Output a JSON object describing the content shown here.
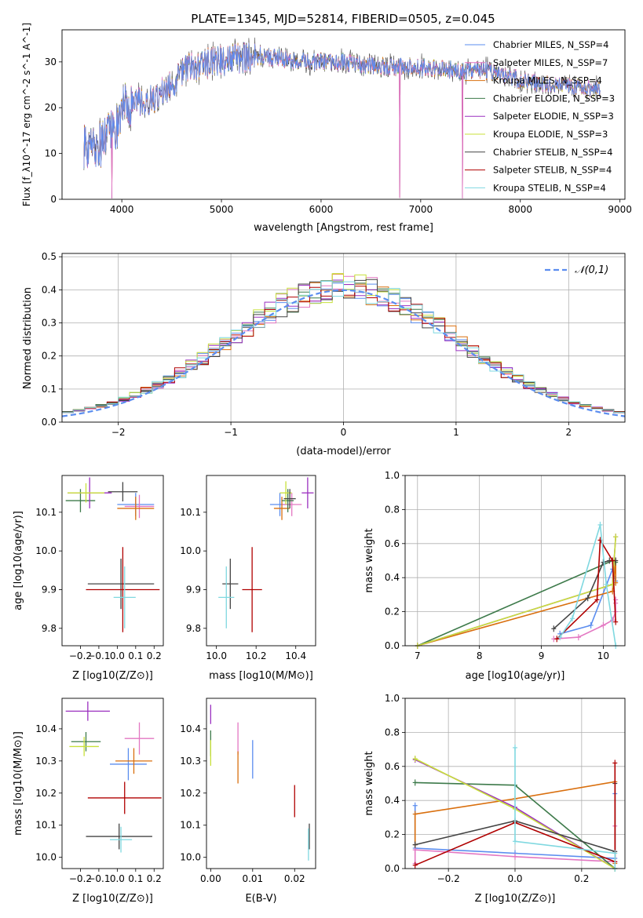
{
  "title": "PLATE=1345, MJD=52814, FIBERID=0505, z=0.045",
  "colors": {
    "chabrier_miles": "#5b8def",
    "salpeter_miles": "#e377c2",
    "kroupa_miles": "#d96f0e",
    "chabrier_elodie": "#3d7a4a",
    "salpeter_elodie": "#9b30c0",
    "kroupa_elodie": "#c8e03a",
    "chabrier_stelib": "#444444",
    "salpeter_stelib": "#b00000",
    "kroupa_stelib": "#7fd8e0",
    "gauss": "#5b8def"
  },
  "chart_data": [
    {
      "id": "spectrum",
      "type": "line",
      "xlabel": "wavelength [Angstrom, rest frame]",
      "ylabel": "Flux [f_λ10^-17 erg cm^-2 s^-1 A^-1]",
      "xlim": [
        3400,
        9050
      ],
      "ylim": [
        0,
        37
      ],
      "xticks": [
        "4000",
        "5000",
        "6000",
        "7000",
        "8000",
        "9000"
      ],
      "yticks": [
        "0",
        "10",
        "20",
        "30"
      ],
      "continuum_knots": [
        [
          3600,
          12
        ],
        [
          3700,
          11
        ],
        [
          3800,
          12
        ],
        [
          3950,
          16
        ],
        [
          4000,
          20
        ],
        [
          4100,
          21
        ],
        [
          4300,
          22
        ],
        [
          4500,
          25
        ],
        [
          4600,
          28
        ],
        [
          4900,
          30
        ],
        [
          5200,
          31
        ],
        [
          5500,
          31
        ],
        [
          5800,
          30
        ],
        [
          6200,
          30
        ],
        [
          6600,
          29
        ],
        [
          7000,
          29
        ],
        [
          7200,
          28.5
        ],
        [
          7500,
          28
        ],
        [
          7700,
          28
        ],
        [
          8000,
          26
        ],
        [
          8300,
          25
        ],
        [
          8600,
          24.5
        ],
        [
          8800,
          24
        ]
      ],
      "glitches": [
        [
          3900,
          0.2
        ],
        [
          6790,
          0.3
        ],
        [
          7420,
          0.2
        ]
      ],
      "legend": {
        "placement": "top-right",
        "entries": [
          {
            "label": "Chabrier MILES, N_SSP=4",
            "color_key": "chabrier_miles"
          },
          {
            "label": "Salpeter MILES, N_SSP=7",
            "color_key": "salpeter_miles"
          },
          {
            "label": "Kroupa MILES, N_SSP=4",
            "color_key": "kroupa_miles"
          },
          {
            "label": "Chabrier ELODIE, N_SSP=3",
            "color_key": "chabrier_elodie"
          },
          {
            "label": "Salpeter ELODIE, N_SSP=3",
            "color_key": "salpeter_elodie"
          },
          {
            "label": "Kroupa ELODIE, N_SSP=3",
            "color_key": "kroupa_elodie"
          },
          {
            "label": "Chabrier STELIB, N_SSP=4",
            "color_key": "chabrier_stelib"
          },
          {
            "label": "Salpeter STELIB, N_SSP=4",
            "color_key": "salpeter_stelib"
          },
          {
            "label": "Kroupa STELIB, N_SSP=4",
            "color_key": "kroupa_stelib"
          }
        ]
      }
    },
    {
      "id": "residuals",
      "type": "histogram",
      "xlabel": "(data-model)/error",
      "ylabel": "Normed distribution",
      "xlim": [
        -2.5,
        2.5
      ],
      "ylim": [
        0,
        0.51
      ],
      "grid": true,
      "xticks": [
        -2,
        -1,
        0,
        1,
        2
      ],
      "yticks": [
        0.0,
        0.1,
        0.2,
        0.3,
        0.4,
        0.5
      ],
      "bin_width": 0.1,
      "legend": {
        "placement": "top-right",
        "label": "𝒩(0,1)"
      }
    },
    {
      "id": "age_vs_Z",
      "type": "scatter",
      "xlabel": "Z [log10(Z/Z⊙)]",
      "ylabel": "age  [log10(age/yr)]",
      "xlim": [
        -0.3,
        0.25
      ],
      "ylim": [
        9.755,
        10.195
      ],
      "xticks": [
        -0.2,
        -0.1,
        0.0,
        0.1,
        0.2
      ],
      "yticks": [
        9.8,
        9.9,
        10.0,
        10.1
      ],
      "points": [
        {
          "c": "chabrier_miles",
          "x": 0.1,
          "xerr": 0.1,
          "y": 10.12,
          "yerr": 0.03
        },
        {
          "c": "salpeter_miles",
          "x": 0.12,
          "xerr": 0.08,
          "y": 10.115,
          "yerr": 0.03
        },
        {
          "c": "kroupa_miles",
          "x": 0.1,
          "xerr": 0.1,
          "y": 10.11,
          "yerr": 0.03
        },
        {
          "c": "chabrier_elodie",
          "x": -0.2,
          "xerr": 0.08,
          "y": 10.13,
          "yerr": 0.03
        },
        {
          "c": "salpeter_elodie",
          "x": -0.15,
          "xerr": 0.12,
          "y": 10.15,
          "yerr": 0.04
        },
        {
          "c": "kroupa_elodie",
          "x": -0.17,
          "xerr": 0.1,
          "y": 10.15,
          "yerr": 0.025
        },
        {
          "c": "chabrier_stelib",
          "x": 0.03,
          "xerr": 0.08,
          "y": 10.153,
          "yerr": 0.025
        },
        {
          "c": "chabrier_stelib",
          "x": 0.02,
          "xerr": 0.18,
          "y": 9.915,
          "yerr": 0.065
        },
        {
          "c": "salpeter_stelib",
          "x": 0.03,
          "xerr": 0.2,
          "y": 9.9,
          "yerr": 0.11
        },
        {
          "c": "kroupa_stelib",
          "x": 0.04,
          "xerr": 0.06,
          "y": 9.88,
          "yerr": 0.08
        }
      ]
    },
    {
      "id": "age_vs_mass",
      "type": "scatter",
      "xlabel": "mass [log10(M/M⊙)]",
      "ylabel": "",
      "xlim": [
        9.95,
        10.5
      ],
      "ylim": [
        9.755,
        10.195
      ],
      "xticks": [
        10.0,
        10.2,
        10.4
      ],
      "yticks": [
        9.8,
        9.9,
        10.0,
        10.1
      ],
      "points": [
        {
          "c": "chabrier_miles",
          "x": 10.32,
          "xerr": 0.05,
          "y": 10.12,
          "yerr": 0.03
        },
        {
          "c": "salpeter_miles",
          "x": 10.38,
          "xerr": 0.05,
          "y": 10.12,
          "yerr": 0.03
        },
        {
          "c": "kroupa_miles",
          "x": 10.33,
          "xerr": 0.04,
          "y": 10.11,
          "yerr": 0.03
        },
        {
          "c": "chabrier_elodie",
          "x": 10.36,
          "xerr": 0.03,
          "y": 10.13,
          "yerr": 0.03
        },
        {
          "c": "salpeter_elodie",
          "x": 10.46,
          "xerr": 0.03,
          "y": 10.15,
          "yerr": 0.04
        },
        {
          "c": "kroupa_elodie",
          "x": 10.35,
          "xerr": 0.03,
          "y": 10.15,
          "yerr": 0.03
        },
        {
          "c": "chabrier_stelib",
          "x": 10.37,
          "xerr": 0.03,
          "y": 10.135,
          "yerr": 0.025
        },
        {
          "c": "chabrier_stelib",
          "x": 10.07,
          "xerr": 0.04,
          "y": 9.915,
          "yerr": 0.065
        },
        {
          "c": "salpeter_stelib",
          "x": 10.18,
          "xerr": 0.05,
          "y": 9.9,
          "yerr": 0.11
        },
        {
          "c": "kroupa_stelib",
          "x": 10.05,
          "xerr": 0.04,
          "y": 9.88,
          "yerr": 0.08
        }
      ]
    },
    {
      "id": "weight_vs_age",
      "type": "line",
      "xlabel": "age  [log10(age/yr)]",
      "ylabel": "mass weight",
      "xlim": [
        6.8,
        10.35
      ],
      "ylim": [
        0,
        1.0
      ],
      "grid": true,
      "xticks": [
        7,
        8,
        9,
        10
      ],
      "yticks": [
        0.0,
        0.2,
        0.4,
        0.6,
        0.8,
        1.0
      ],
      "series": [
        {
          "c": "chabrier_miles",
          "x": [
            9.3,
            9.8,
            10.15,
            10.2
          ],
          "y": [
            0.07,
            0.12,
            0.45,
            0.38
          ]
        },
        {
          "c": "salpeter_miles",
          "x": [
            9.2,
            9.6,
            10.0,
            10.15,
            10.2,
            10.2,
            10.2
          ],
          "y": [
            0.04,
            0.05,
            0.12,
            0.15,
            0.2,
            0.25,
            0.27
          ]
        },
        {
          "c": "kroupa_miles",
          "x": [
            7.0,
            10.15,
            10.2,
            10.2
          ],
          "y": [
            0.0,
            0.32,
            0.5,
            0.37
          ]
        },
        {
          "c": "chabrier_elodie",
          "x": [
            7.0,
            10.15,
            10.2
          ],
          "y": [
            0.0,
            0.5,
            0.49
          ]
        },
        {
          "c": "salpeter_elodie",
          "x": [
            7.0,
            10.15,
            10.2
          ],
          "y": [
            0.0,
            0.36,
            0.64
          ]
        },
        {
          "c": "kroupa_elodie",
          "x": [
            7.0,
            10.15,
            10.2
          ],
          "y": [
            0.0,
            0.36,
            0.64
          ]
        },
        {
          "c": "chabrier_stelib",
          "x": [
            9.2,
            9.75,
            10.0,
            10.1,
            10.2
          ],
          "y": [
            0.1,
            0.28,
            0.49,
            0.5,
            0.5
          ]
        },
        {
          "c": "salpeter_stelib",
          "x": [
            9.25,
            9.9,
            9.95,
            10.15,
            10.2
          ],
          "y": [
            0.04,
            0.27,
            0.62,
            0.5,
            0.14
          ]
        },
        {
          "c": "kroupa_stelib",
          "x": [
            9.3,
            9.5,
            9.95,
            10.05,
            10.2
          ],
          "y": [
            0.05,
            0.16,
            0.71,
            0.36,
            0.0
          ]
        }
      ]
    },
    {
      "id": "mass_vs_Z",
      "type": "scatter",
      "xlabel": "Z [log10(Z/Z⊙)]",
      "ylabel": "mass [log10(M/M⊙)]",
      "xlim": [
        -0.3,
        0.25
      ],
      "ylim": [
        9.965,
        10.495
      ],
      "xticks": [
        -0.2,
        -0.1,
        0.0,
        0.1,
        0.2
      ],
      "yticks": [
        10.0,
        10.1,
        10.2,
        10.3,
        10.4
      ],
      "points": [
        {
          "c": "chabrier_miles",
          "x": 0.06,
          "xerr": 0.1,
          "y": 10.29,
          "yerr": 0.05
        },
        {
          "c": "salpeter_miles",
          "x": 0.12,
          "xerr": 0.08,
          "y": 10.37,
          "yerr": 0.05
        },
        {
          "c": "kroupa_miles",
          "x": 0.09,
          "xerr": 0.1,
          "y": 10.3,
          "yerr": 0.04
        },
        {
          "c": "chabrier_elodie",
          "x": -0.17,
          "xerr": 0.08,
          "y": 10.36,
          "yerr": 0.03
        },
        {
          "c": "salpeter_elodie",
          "x": -0.16,
          "xerr": 0.12,
          "y": 10.455,
          "yerr": 0.03
        },
        {
          "c": "kroupa_elodie",
          "x": -0.18,
          "xerr": 0.08,
          "y": 10.345,
          "yerr": 0.03
        },
        {
          "c": "chabrier_stelib",
          "x": 0.01,
          "xerr": 0.18,
          "y": 10.065,
          "yerr": 0.04
        },
        {
          "c": "salpeter_stelib",
          "x": 0.04,
          "xerr": 0.2,
          "y": 10.185,
          "yerr": 0.05
        },
        {
          "c": "kroupa_stelib",
          "x": 0.02,
          "xerr": 0.06,
          "y": 10.055,
          "yerr": 0.04
        }
      ]
    },
    {
      "id": "mass_vs_ebv",
      "type": "scatter",
      "xlabel": "E(B-V)",
      "ylabel": "",
      "xlim": [
        -0.001,
        0.025
      ],
      "ylim": [
        9.965,
        10.495
      ],
      "xticks": [
        0.0,
        0.01,
        0.02
      ],
      "yticks": [
        10.0,
        10.1,
        10.2,
        10.3,
        10.4
      ],
      "points": [
        {
          "c": "chabrier_miles",
          "x": 0.01,
          "xerr": 0,
          "y": 10.305,
          "yerr": 0.06
        },
        {
          "c": "salpeter_miles",
          "x": 0.0065,
          "xerr": 0,
          "y": 10.37,
          "yerr": 0.05
        },
        {
          "c": "kroupa_miles",
          "x": 0.0065,
          "xerr": 0,
          "y": 10.28,
          "yerr": 0.05
        },
        {
          "c": "chabrier_elodie",
          "x": 0.0,
          "xerr": 0,
          "y": 10.355,
          "yerr": 0.04
        },
        {
          "c": "salpeter_elodie",
          "x": 0.0,
          "xerr": 0,
          "y": 10.445,
          "yerr": 0.03
        },
        {
          "c": "kroupa_elodie",
          "x": 0.0,
          "xerr": 0,
          "y": 10.325,
          "yerr": 0.04
        },
        {
          "c": "chabrier_stelib",
          "x": 0.0235,
          "xerr": 0,
          "y": 10.065,
          "yerr": 0.04
        },
        {
          "c": "salpeter_stelib",
          "x": 0.02,
          "xerr": 0,
          "y": 10.175,
          "yerr": 0.05
        },
        {
          "c": "kroupa_stelib",
          "x": 0.0233,
          "xerr": 0,
          "y": 10.04,
          "yerr": 0.05
        }
      ]
    },
    {
      "id": "weight_vs_Z",
      "type": "line",
      "xlabel": "Z [log10(Z/Z⊙)]",
      "ylabel": "mass weight",
      "xlim": [
        -0.33,
        0.33
      ],
      "ylim": [
        0,
        1.0
      ],
      "grid": true,
      "xticks": [
        -0.2,
        0.0,
        0.2
      ],
      "yticks": [
        0.0,
        0.2,
        0.4,
        0.6,
        0.8,
        1.0
      ],
      "series": [
        {
          "c": "chabrier_miles",
          "x": [
            -0.3,
            -0.3,
            0.0,
            0.3,
            0.3
          ],
          "y": [
            0.37,
            0.12,
            0.09,
            0.06,
            0.44
          ]
        },
        {
          "c": "salpeter_miles",
          "x": [
            -0.3,
            -0.3,
            0.0,
            0.3,
            0.3
          ],
          "y": [
            0.03,
            0.11,
            0.07,
            0.04,
            0.25
          ]
        },
        {
          "c": "kroupa_miles",
          "x": [
            -0.3,
            -0.3,
            0.0,
            0.3,
            0.3
          ],
          "y": [
            0.14,
            0.32,
            0.41,
            0.51,
            0.03
          ]
        },
        {
          "c": "chabrier_elodie",
          "x": [
            -0.3,
            0.0,
            0.3
          ],
          "y": [
            0.505,
            0.49,
            0.0
          ]
        },
        {
          "c": "salpeter_elodie",
          "x": [
            -0.3,
            0.0,
            0.3
          ],
          "y": [
            0.64,
            0.36,
            0.0
          ]
        },
        {
          "c": "kroupa_elodie",
          "x": [
            -0.3,
            0.0,
            0.3
          ],
          "y": [
            0.645,
            0.35,
            0.0
          ]
        },
        {
          "c": "chabrier_stelib",
          "x": [
            -0.3,
            0.0,
            0.3,
            0.3
          ],
          "y": [
            0.14,
            0.28,
            0.1,
            0.5
          ]
        },
        {
          "c": "salpeter_stelib",
          "x": [
            -0.3,
            0.0,
            0.3,
            0.3
          ],
          "y": [
            0.02,
            0.27,
            0.04,
            0.62
          ]
        },
        {
          "c": "kroupa_stelib",
          "x": [
            0.0,
            0.0,
            0.3,
            0.3
          ],
          "y": [
            0.71,
            0.16,
            0.09,
            0.0
          ]
        }
      ]
    }
  ]
}
